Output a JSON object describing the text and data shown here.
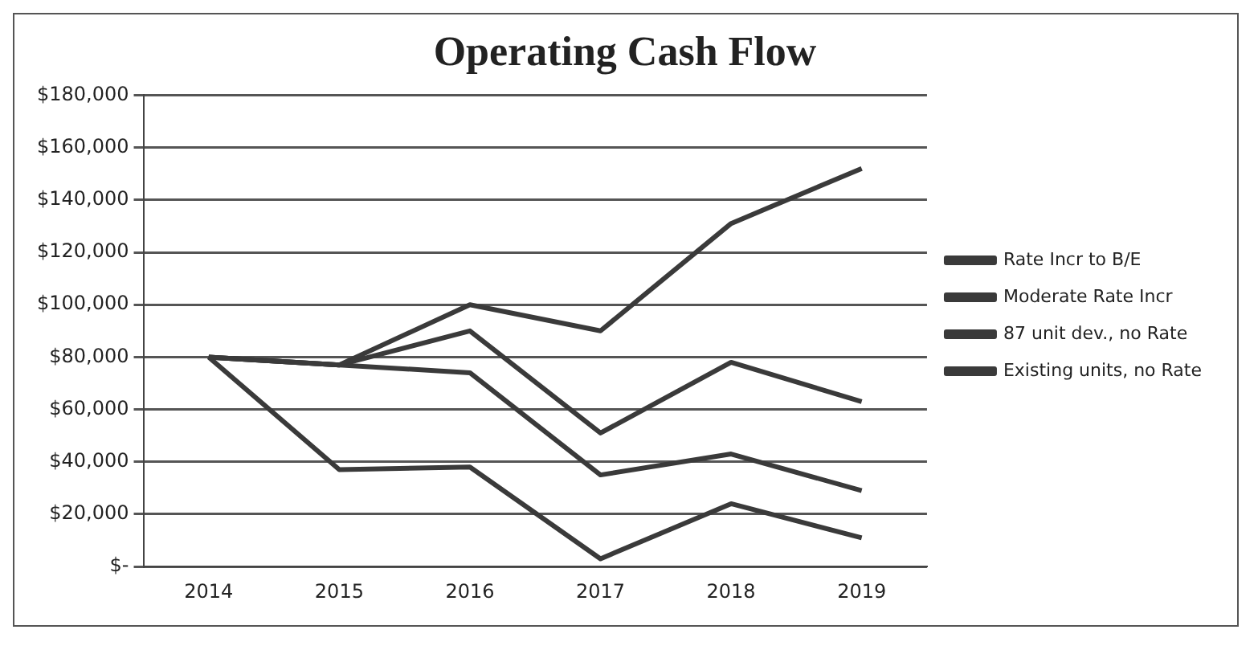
{
  "chart_data": {
    "type": "line",
    "title": "Operating Cash Flow",
    "categories": [
      "2014",
      "2015",
      "2016",
      "2017",
      "2018",
      "2019"
    ],
    "series": [
      {
        "name": "Rate Incr to B/E",
        "color": "#3a3a3a",
        "values": [
          80000,
          77000,
          100000,
          90000,
          131000,
          152000
        ]
      },
      {
        "name": "Moderate Rate Incr",
        "color": "#3a3a3a",
        "values": [
          80000,
          77000,
          90000,
          51000,
          78000,
          63000
        ]
      },
      {
        "name": "87 unit dev., no Rate",
        "color": "#3a3a3a",
        "values": [
          80000,
          77000,
          74000,
          35000,
          43000,
          29000
        ]
      },
      {
        "name": "Existing units, no Rate",
        "color": "#3a3a3a",
        "values": [
          80000,
          37000,
          38000,
          3000,
          24000,
          11000
        ]
      }
    ],
    "ylim": [
      0,
      180000
    ],
    "yticks": [
      {
        "value": 0,
        "label": "$-"
      },
      {
        "value": 20000,
        "label": "$20,000"
      },
      {
        "value": 40000,
        "label": "$40,000"
      },
      {
        "value": 60000,
        "label": "$60,000"
      },
      {
        "value": 80000,
        "label": "$80,000"
      },
      {
        "value": 100000,
        "label": "$100,000"
      },
      {
        "value": 120000,
        "label": "$120,000"
      },
      {
        "value": 140000,
        "label": "$140,000"
      },
      {
        "value": 160000,
        "label": "$160,000"
      },
      {
        "value": 180000,
        "label": "$180,000"
      }
    ],
    "grid": "y",
    "legend": "right",
    "marker": "none",
    "line_style": "solid"
  }
}
